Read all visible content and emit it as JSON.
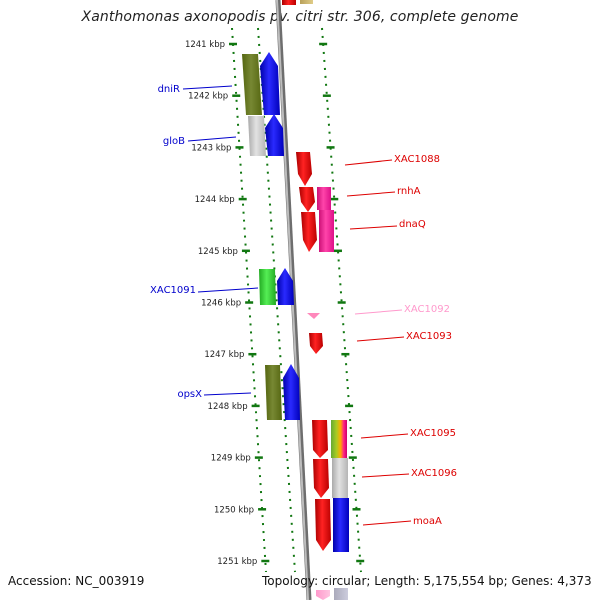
{
  "title": "Xanthomonas axonopodis pv. citri str. 306, complete genome",
  "accession": "Accession: NC_003919",
  "topology": "Topology: circular; Length: 5,175,554 bp; Genes: 4,373",
  "colors": {
    "forward_label": "#0000cc",
    "reverse_label": "#dd0000",
    "pseudo_label": "#ff99cc",
    "tick": "#117711",
    "backbone": "#9a9a9a",
    "blue_gene": "#0000ee",
    "red_gene": "#ee0000",
    "pink_gene": "#ff3399",
    "olive_gene": "#667722",
    "green_gene": "#33cc33",
    "gray_gene": "#c8c8c8"
  },
  "scale": {
    "unit": "kbp",
    "labels": [
      "1241 kbp",
      "1242 kbp",
      "1243 kbp",
      "1244 kbp",
      "1245 kbp",
      "1246 kbp",
      "1247 kbp",
      "1248 kbp",
      "1249 kbp",
      "1250 kbp",
      "1251 kbp"
    ]
  },
  "genes": [
    {
      "label": "dniR",
      "strand": "forward",
      "color": "olive_gene"
    },
    {
      "label": "gloB",
      "strand": "forward",
      "color": "gray_gene"
    },
    {
      "label": "XAC1088",
      "strand": "reverse",
      "color": "red_gene"
    },
    {
      "label": "rnhA",
      "strand": "reverse",
      "color": "red_gene"
    },
    {
      "label": "dnaQ",
      "strand": "reverse",
      "color": "red_gene"
    },
    {
      "label": "XAC1091",
      "strand": "forward",
      "color": "green_gene"
    },
    {
      "label": "XAC1092",
      "strand": "reverse",
      "color": "pink_gene"
    },
    {
      "label": "XAC1093",
      "strand": "reverse",
      "color": "red_gene"
    },
    {
      "label": "opsX",
      "strand": "forward",
      "color": "olive_gene"
    },
    {
      "label": "XAC1095",
      "strand": "reverse",
      "color": "red_gene"
    },
    {
      "label": "XAC1096",
      "strand": "reverse",
      "color": "red_gene"
    },
    {
      "label": "moaA",
      "strand": "reverse",
      "color": "red_gene"
    }
  ]
}
